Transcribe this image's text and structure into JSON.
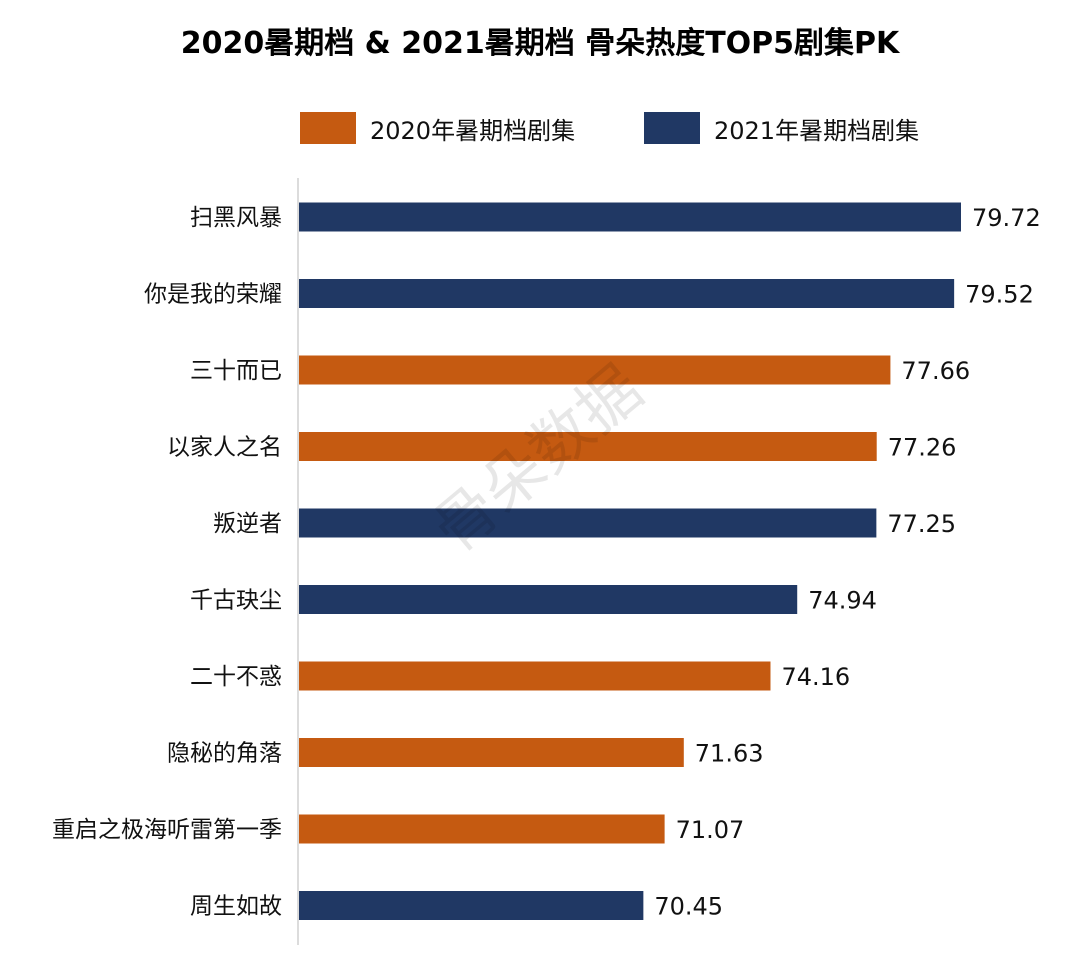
{
  "chart_data": {
    "type": "bar",
    "orientation": "horizontal",
    "title": "2020暑期档 & 2021暑期档 骨朵热度TOP5剧集PK",
    "legend": [
      {
        "name": "2020年暑期档剧集",
        "color": "#c55a11"
      },
      {
        "name": "2021年暑期档剧集",
        "color": "#203864"
      }
    ],
    "categories": [
      "扫黑风暴",
      "你是我的荣耀",
      "三十而已",
      "以家人之名",
      "叛逆者",
      "千古玦尘",
      "二十不惑",
      "隐秘的角落",
      "重启之极海听雷第一季",
      "周生如故"
    ],
    "values": [
      79.72,
      79.52,
      77.66,
      77.26,
      77.25,
      74.94,
      74.16,
      71.63,
      71.07,
      70.45
    ],
    "value_labels": [
      "79.72",
      "79.52",
      "77.66",
      "77.26",
      "77.25",
      "74.94",
      "74.16",
      "71.63",
      "71.07",
      "70.45"
    ],
    "series_index": [
      1,
      1,
      0,
      0,
      1,
      1,
      0,
      0,
      0,
      1
    ],
    "xlim": [
      60.4,
      79.72
    ],
    "xlabel": "",
    "ylabel": "",
    "grid": false
  },
  "watermark": "骨朵数据"
}
